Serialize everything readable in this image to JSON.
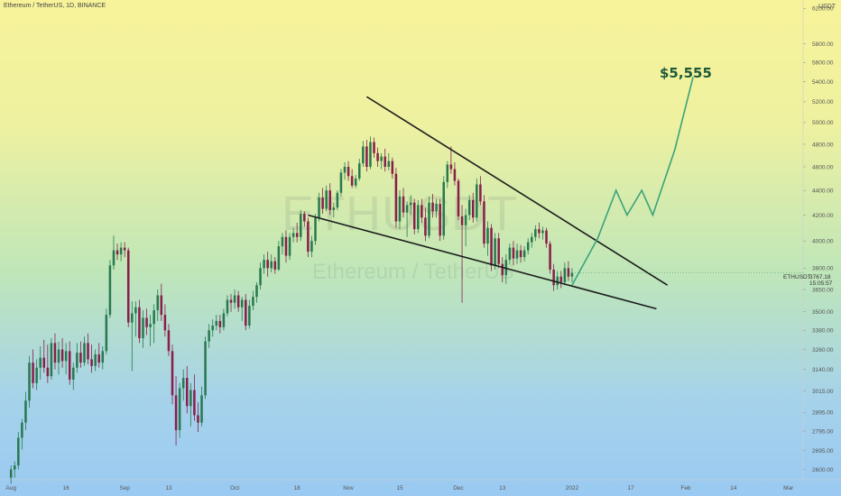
{
  "header": {
    "title": "Ethereum / TetherUS, 1D, BINANCE",
    "currency": "USDT"
  },
  "watermark": {
    "symbol": "ETHUSDT",
    "name": "Ethereum / TetherUS"
  },
  "annotation": {
    "target_label": "$5,555"
  },
  "price_scale": {
    "symbol": "ETHUSDT",
    "last_price": "3767.18",
    "countdown": "15:05:57"
  },
  "colors": {
    "up": "#28794f",
    "down": "#8a1e4a",
    "trendline": "#1b1b1b",
    "projection": "#3aa37a"
  },
  "chart_data": {
    "type": "candlestick",
    "yscale": "log",
    "ylim": [
      2550,
      6300
    ],
    "y_ticks": [
      "2600.00",
      "2695.00",
      "2795.00",
      "2895.00",
      "3015.00",
      "3140.00",
      "3260.00",
      "3380.00",
      "3500.00",
      "3650.00",
      "3800.00",
      "4000.00",
      "4200.00",
      "4400.00",
      "4600.00",
      "4800.00",
      "5000.00",
      "5200.00",
      "5400.00",
      "5600.00",
      "5800.00",
      "6200.00"
    ],
    "x_ticks": [
      {
        "label": "Aug",
        "day": 0
      },
      {
        "label": "16",
        "day": 15
      },
      {
        "label": "Sep",
        "day": 31
      },
      {
        "label": "13",
        "day": 43
      },
      {
        "label": "Oct",
        "day": 61
      },
      {
        "label": "18",
        "day": 78
      },
      {
        "label": "Nov",
        "day": 92
      },
      {
        "label": "15",
        "day": 106
      },
      {
        "label": "Dec",
        "day": 122
      },
      {
        "label": "13",
        "day": 134
      },
      {
        "label": "2022",
        "day": 153
      },
      {
        "label": "17",
        "day": 169
      },
      {
        "label": "Feb",
        "day": 184
      },
      {
        "label": "14",
        "day": 197
      },
      {
        "label": "Mar",
        "day": 212
      }
    ],
    "day_range": [
      -3,
      216
    ],
    "candles": [
      {
        "d": 0,
        "o": 2560,
        "h": 2620,
        "l": 2530,
        "c": 2600
      },
      {
        "d": 1,
        "o": 2600,
        "h": 2640,
        "l": 2560,
        "c": 2620
      },
      {
        "d": 2,
        "o": 2620,
        "h": 2790,
        "l": 2600,
        "c": 2760
      },
      {
        "d": 3,
        "o": 2760,
        "h": 2860,
        "l": 2700,
        "c": 2840
      },
      {
        "d": 4,
        "o": 2840,
        "h": 3010,
        "l": 2800,
        "c": 2960
      },
      {
        "d": 5,
        "o": 2960,
        "h": 3220,
        "l": 2920,
        "c": 3180
      },
      {
        "d": 6,
        "o": 3180,
        "h": 3260,
        "l": 3030,
        "c": 3060
      },
      {
        "d": 7,
        "o": 3060,
        "h": 3200,
        "l": 3020,
        "c": 3150
      },
      {
        "d": 8,
        "o": 3150,
        "h": 3280,
        "l": 3080,
        "c": 3210
      },
      {
        "d": 9,
        "o": 3210,
        "h": 3320,
        "l": 3120,
        "c": 3150
      },
      {
        "d": 10,
        "o": 3150,
        "h": 3290,
        "l": 3060,
        "c": 3100
      },
      {
        "d": 11,
        "o": 3100,
        "h": 3330,
        "l": 3080,
        "c": 3300
      },
      {
        "d": 12,
        "o": 3300,
        "h": 3360,
        "l": 3140,
        "c": 3180
      },
      {
        "d": 13,
        "o": 3180,
        "h": 3310,
        "l": 3110,
        "c": 3260
      },
      {
        "d": 14,
        "o": 3260,
        "h": 3330,
        "l": 3150,
        "c": 3190
      },
      {
        "d": 15,
        "o": 3190,
        "h": 3300,
        "l": 3110,
        "c": 3250
      },
      {
        "d": 16,
        "o": 3250,
        "h": 3310,
        "l": 3050,
        "c": 3080
      },
      {
        "d": 17,
        "o": 3080,
        "h": 3180,
        "l": 3020,
        "c": 3150
      },
      {
        "d": 18,
        "o": 3150,
        "h": 3300,
        "l": 3120,
        "c": 3240
      },
      {
        "d": 19,
        "o": 3240,
        "h": 3310,
        "l": 3150,
        "c": 3180
      },
      {
        "d": 20,
        "o": 3180,
        "h": 3340,
        "l": 3160,
        "c": 3300
      },
      {
        "d": 21,
        "o": 3300,
        "h": 3360,
        "l": 3170,
        "c": 3200
      },
      {
        "d": 22,
        "o": 3200,
        "h": 3290,
        "l": 3120,
        "c": 3160
      },
      {
        "d": 23,
        "o": 3160,
        "h": 3260,
        "l": 3130,
        "c": 3230
      },
      {
        "d": 24,
        "o": 3230,
        "h": 3300,
        "l": 3150,
        "c": 3180
      },
      {
        "d": 25,
        "o": 3180,
        "h": 3280,
        "l": 3140,
        "c": 3250
      },
      {
        "d": 26,
        "o": 3250,
        "h": 3520,
        "l": 3230,
        "c": 3480
      },
      {
        "d": 27,
        "o": 3480,
        "h": 3860,
        "l": 3460,
        "c": 3820
      },
      {
        "d": 28,
        "o": 3820,
        "h": 4040,
        "l": 3790,
        "c": 3930
      },
      {
        "d": 29,
        "o": 3930,
        "h": 3980,
        "l": 3860,
        "c": 3900
      },
      {
        "d": 30,
        "o": 3900,
        "h": 3990,
        "l": 3850,
        "c": 3950
      },
      {
        "d": 31,
        "o": 3950,
        "h": 3990,
        "l": 3880,
        "c": 3930
      },
      {
        "d": 32,
        "o": 3930,
        "h": 3950,
        "l": 3400,
        "c": 3430
      },
      {
        "d": 33,
        "o": 3430,
        "h": 3570,
        "l": 3130,
        "c": 3490
      },
      {
        "d": 34,
        "o": 3490,
        "h": 3570,
        "l": 3340,
        "c": 3530
      },
      {
        "d": 35,
        "o": 3530,
        "h": 3580,
        "l": 3300,
        "c": 3330
      },
      {
        "d": 36,
        "o": 3330,
        "h": 3510,
        "l": 3270,
        "c": 3460
      },
      {
        "d": 37,
        "o": 3460,
        "h": 3520,
        "l": 3350,
        "c": 3400
      },
      {
        "d": 38,
        "o": 3400,
        "h": 3480,
        "l": 3280,
        "c": 3420
      },
      {
        "d": 39,
        "o": 3420,
        "h": 3550,
        "l": 3300,
        "c": 3510
      },
      {
        "d": 40,
        "o": 3510,
        "h": 3650,
        "l": 3440,
        "c": 3610
      },
      {
        "d": 41,
        "o": 3610,
        "h": 3690,
        "l": 3440,
        "c": 3480
      },
      {
        "d": 42,
        "o": 3480,
        "h": 3550,
        "l": 3340,
        "c": 3380
      },
      {
        "d": 43,
        "o": 3380,
        "h": 3420,
        "l": 3220,
        "c": 3250
      },
      {
        "d": 44,
        "o": 3250,
        "h": 3290,
        "l": 2940,
        "c": 2990
      },
      {
        "d": 45,
        "o": 2990,
        "h": 3100,
        "l": 2720,
        "c": 2800
      },
      {
        "d": 46,
        "o": 2800,
        "h": 3060,
        "l": 2760,
        "c": 3030
      },
      {
        "d": 47,
        "o": 3030,
        "h": 3140,
        "l": 2960,
        "c": 3090
      },
      {
        "d": 48,
        "o": 3090,
        "h": 3160,
        "l": 2890,
        "c": 2930
      },
      {
        "d": 49,
        "o": 2930,
        "h": 3060,
        "l": 2820,
        "c": 3020
      },
      {
        "d": 50,
        "o": 3020,
        "h": 3110,
        "l": 2850,
        "c": 2880
      },
      {
        "d": 51,
        "o": 2880,
        "h": 2950,
        "l": 2790,
        "c": 2840
      },
      {
        "d": 52,
        "o": 2840,
        "h": 3040,
        "l": 2820,
        "c": 2990
      },
      {
        "d": 53,
        "o": 2990,
        "h": 3340,
        "l": 2970,
        "c": 3310
      },
      {
        "d": 54,
        "o": 3310,
        "h": 3420,
        "l": 3270,
        "c": 3380
      },
      {
        "d": 55,
        "o": 3380,
        "h": 3450,
        "l": 3340,
        "c": 3410
      },
      {
        "d": 56,
        "o": 3410,
        "h": 3480,
        "l": 3380,
        "c": 3440
      },
      {
        "d": 57,
        "o": 3440,
        "h": 3480,
        "l": 3360,
        "c": 3400
      },
      {
        "d": 58,
        "o": 3400,
        "h": 3520,
        "l": 3380,
        "c": 3490
      },
      {
        "d": 59,
        "o": 3490,
        "h": 3610,
        "l": 3470,
        "c": 3580
      },
      {
        "d": 60,
        "o": 3580,
        "h": 3620,
        "l": 3500,
        "c": 3560
      },
      {
        "d": 61,
        "o": 3560,
        "h": 3650,
        "l": 3520,
        "c": 3610
      },
      {
        "d": 62,
        "o": 3610,
        "h": 3640,
        "l": 3500,
        "c": 3530
      },
      {
        "d": 63,
        "o": 3530,
        "h": 3600,
        "l": 3440,
        "c": 3580
      },
      {
        "d": 64,
        "o": 3580,
        "h": 3620,
        "l": 3380,
        "c": 3410
      },
      {
        "d": 65,
        "o": 3410,
        "h": 3580,
        "l": 3390,
        "c": 3540
      },
      {
        "d": 66,
        "o": 3540,
        "h": 3640,
        "l": 3510,
        "c": 3600
      },
      {
        "d": 67,
        "o": 3600,
        "h": 3700,
        "l": 3560,
        "c": 3680
      },
      {
        "d": 68,
        "o": 3680,
        "h": 3840,
        "l": 3650,
        "c": 3800
      },
      {
        "d": 69,
        "o": 3800,
        "h": 3900,
        "l": 3760,
        "c": 3860
      },
      {
        "d": 70,
        "o": 3860,
        "h": 3920,
        "l": 3740,
        "c": 3800
      },
      {
        "d": 71,
        "o": 3800,
        "h": 3900,
        "l": 3770,
        "c": 3850
      },
      {
        "d": 72,
        "o": 3850,
        "h": 3880,
        "l": 3760,
        "c": 3790
      },
      {
        "d": 73,
        "o": 3790,
        "h": 4000,
        "l": 3780,
        "c": 3960
      },
      {
        "d": 74,
        "o": 3960,
        "h": 4060,
        "l": 3900,
        "c": 4030
      },
      {
        "d": 75,
        "o": 4030,
        "h": 4080,
        "l": 3840,
        "c": 3890
      },
      {
        "d": 76,
        "o": 3890,
        "h": 4060,
        "l": 3860,
        "c": 4030
      },
      {
        "d": 77,
        "o": 4030,
        "h": 4100,
        "l": 3990,
        "c": 4060
      },
      {
        "d": 78,
        "o": 4060,
        "h": 4140,
        "l": 3990,
        "c": 4030
      },
      {
        "d": 79,
        "o": 4030,
        "h": 4240,
        "l": 4000,
        "c": 4210
      },
      {
        "d": 80,
        "o": 4210,
        "h": 4230,
        "l": 4110,
        "c": 4150
      },
      {
        "d": 81,
        "o": 4150,
        "h": 4180,
        "l": 3880,
        "c": 3920
      },
      {
        "d": 82,
        "o": 3920,
        "h": 4040,
        "l": 3880,
        "c": 4000
      },
      {
        "d": 83,
        "o": 4000,
        "h": 4210,
        "l": 3970,
        "c": 4180
      },
      {
        "d": 84,
        "o": 4180,
        "h": 4380,
        "l": 4150,
        "c": 4340
      },
      {
        "d": 85,
        "o": 4340,
        "h": 4420,
        "l": 4210,
        "c": 4250
      },
      {
        "d": 86,
        "o": 4250,
        "h": 4440,
        "l": 4230,
        "c": 4400
      },
      {
        "d": 87,
        "o": 4400,
        "h": 4460,
        "l": 4200,
        "c": 4240
      },
      {
        "d": 88,
        "o": 4240,
        "h": 4300,
        "l": 4180,
        "c": 4260
      },
      {
        "d": 89,
        "o": 4260,
        "h": 4400,
        "l": 4240,
        "c": 4380
      },
      {
        "d": 90,
        "o": 4380,
        "h": 4580,
        "l": 4350,
        "c": 4550
      },
      {
        "d": 91,
        "o": 4550,
        "h": 4640,
        "l": 4490,
        "c": 4600
      },
      {
        "d": 92,
        "o": 4600,
        "h": 4650,
        "l": 4480,
        "c": 4520
      },
      {
        "d": 93,
        "o": 4520,
        "h": 4580,
        "l": 4420,
        "c": 4440
      },
      {
        "d": 94,
        "o": 4440,
        "h": 4530,
        "l": 4420,
        "c": 4500
      },
      {
        "d": 95,
        "o": 4500,
        "h": 4670,
        "l": 4480,
        "c": 4630
      },
      {
        "d": 96,
        "o": 4630,
        "h": 4830,
        "l": 4600,
        "c": 4780
      },
      {
        "d": 97,
        "o": 4780,
        "h": 4840,
        "l": 4560,
        "c": 4600
      },
      {
        "d": 98,
        "o": 4600,
        "h": 4870,
        "l": 4580,
        "c": 4820
      },
      {
        "d": 99,
        "o": 4820,
        "h": 4860,
        "l": 4680,
        "c": 4720
      },
      {
        "d": 100,
        "o": 4720,
        "h": 4770,
        "l": 4600,
        "c": 4650
      },
      {
        "d": 101,
        "o": 4650,
        "h": 4720,
        "l": 4580,
        "c": 4690
      },
      {
        "d": 102,
        "o": 4690,
        "h": 4760,
        "l": 4560,
        "c": 4600
      },
      {
        "d": 103,
        "o": 4600,
        "h": 4720,
        "l": 4570,
        "c": 4650
      },
      {
        "d": 104,
        "o": 4650,
        "h": 4680,
        "l": 4500,
        "c": 4540
      },
      {
        "d": 105,
        "o": 4540,
        "h": 4590,
        "l": 4100,
        "c": 4150
      },
      {
        "d": 106,
        "o": 4150,
        "h": 4400,
        "l": 4090,
        "c": 4350
      },
      {
        "d": 107,
        "o": 4350,
        "h": 4420,
        "l": 4180,
        "c": 4220
      },
      {
        "d": 108,
        "o": 4220,
        "h": 4310,
        "l": 4030,
        "c": 4280
      },
      {
        "d": 109,
        "o": 4280,
        "h": 4360,
        "l": 4200,
        "c": 4300
      },
      {
        "d": 110,
        "o": 4300,
        "h": 4330,
        "l": 4050,
        "c": 4090
      },
      {
        "d": 111,
        "o": 4090,
        "h": 4320,
        "l": 4060,
        "c": 4280
      },
      {
        "d": 112,
        "o": 4280,
        "h": 4330,
        "l": 4140,
        "c": 4180
      },
      {
        "d": 113,
        "o": 4180,
        "h": 4260,
        "l": 4000,
        "c": 4040
      },
      {
        "d": 114,
        "o": 4040,
        "h": 4350,
        "l": 4020,
        "c": 4300
      },
      {
        "d": 115,
        "o": 4300,
        "h": 4370,
        "l": 4180,
        "c": 4230
      },
      {
        "d": 116,
        "o": 4230,
        "h": 4330,
        "l": 4180,
        "c": 4290
      },
      {
        "d": 117,
        "o": 4290,
        "h": 4330,
        "l": 4000,
        "c": 4040
      },
      {
        "d": 118,
        "o": 4040,
        "h": 4520,
        "l": 4010,
        "c": 4470
      },
      {
        "d": 119,
        "o": 4470,
        "h": 4650,
        "l": 4420,
        "c": 4620
      },
      {
        "d": 120,
        "o": 4620,
        "h": 4780,
        "l": 4540,
        "c": 4580
      },
      {
        "d": 121,
        "o": 4580,
        "h": 4640,
        "l": 4440,
        "c": 4480
      },
      {
        "d": 122,
        "o": 4480,
        "h": 4500,
        "l": 4160,
        "c": 4190
      },
      {
        "d": 123,
        "o": 4190,
        "h": 4280,
        "l": 3560,
        "c": 4120
      },
      {
        "d": 124,
        "o": 4120,
        "h": 4250,
        "l": 3960,
        "c": 4200
      },
      {
        "d": 125,
        "o": 4200,
        "h": 4360,
        "l": 4160,
        "c": 4320
      },
      {
        "d": 126,
        "o": 4320,
        "h": 4380,
        "l": 4140,
        "c": 4180
      },
      {
        "d": 127,
        "o": 4180,
        "h": 4500,
        "l": 4150,
        "c": 4450
      },
      {
        "d": 128,
        "o": 4450,
        "h": 4520,
        "l": 4280,
        "c": 4310
      },
      {
        "d": 129,
        "o": 4310,
        "h": 4360,
        "l": 3950,
        "c": 3980
      },
      {
        "d": 130,
        "o": 3980,
        "h": 4150,
        "l": 3890,
        "c": 4100
      },
      {
        "d": 131,
        "o": 4100,
        "h": 4130,
        "l": 3780,
        "c": 3820
      },
      {
        "d": 132,
        "o": 3820,
        "h": 4060,
        "l": 3790,
        "c": 4020
      },
      {
        "d": 133,
        "o": 4020,
        "h": 4060,
        "l": 3800,
        "c": 3830
      },
      {
        "d": 134,
        "o": 3830,
        "h": 3880,
        "l": 3700,
        "c": 3750
      },
      {
        "d": 135,
        "o": 3750,
        "h": 3900,
        "l": 3690,
        "c": 3860
      },
      {
        "d": 136,
        "o": 3860,
        "h": 3980,
        "l": 3830,
        "c": 3950
      },
      {
        "d": 137,
        "o": 3950,
        "h": 4000,
        "l": 3820,
        "c": 3870
      },
      {
        "d": 138,
        "o": 3870,
        "h": 3980,
        "l": 3830,
        "c": 3930
      },
      {
        "d": 139,
        "o": 3930,
        "h": 3970,
        "l": 3840,
        "c": 3880
      },
      {
        "d": 140,
        "o": 3880,
        "h": 3960,
        "l": 3850,
        "c": 3930
      },
      {
        "d": 141,
        "o": 3930,
        "h": 4020,
        "l": 3900,
        "c": 3990
      },
      {
        "d": 142,
        "o": 3990,
        "h": 4060,
        "l": 3950,
        "c": 4030
      },
      {
        "d": 143,
        "o": 4030,
        "h": 4120,
        "l": 4000,
        "c": 4090
      },
      {
        "d": 144,
        "o": 4090,
        "h": 4140,
        "l": 4020,
        "c": 4060
      },
      {
        "d": 145,
        "o": 4060,
        "h": 4110,
        "l": 4010,
        "c": 4080
      },
      {
        "d": 146,
        "o": 4080,
        "h": 4100,
        "l": 3950,
        "c": 3980
      },
      {
        "d": 147,
        "o": 3980,
        "h": 4000,
        "l": 3760,
        "c": 3790
      },
      {
        "d": 148,
        "o": 3790,
        "h": 3830,
        "l": 3640,
        "c": 3680
      },
      {
        "d": 149,
        "o": 3680,
        "h": 3780,
        "l": 3650,
        "c": 3740
      },
      {
        "d": 150,
        "o": 3740,
        "h": 3780,
        "l": 3660,
        "c": 3700
      },
      {
        "d": 151,
        "o": 3700,
        "h": 3840,
        "l": 3680,
        "c": 3800
      },
      {
        "d": 152,
        "o": 3800,
        "h": 3850,
        "l": 3710,
        "c": 3740
      },
      {
        "d": 153,
        "o": 3740,
        "h": 3800,
        "l": 3700,
        "c": 3767
      }
    ],
    "trendlines": [
      {
        "name": "upper-wedge",
        "points": [
          {
            "d": 97,
            "price": 5250
          },
          {
            "d": 179,
            "price": 3680
          }
        ]
      },
      {
        "name": "lower-wedge",
        "points": [
          {
            "d": 81,
            "price": 4200
          },
          {
            "d": 176,
            "price": 3520
          }
        ]
      }
    ],
    "projection": [
      {
        "d": 153,
        "price": 3680
      },
      {
        "d": 160,
        "price": 4020
      },
      {
        "d": 165,
        "price": 4400
      },
      {
        "d": 168,
        "price": 4200
      },
      {
        "d": 172,
        "price": 4400
      },
      {
        "d": 175,
        "price": 4200
      },
      {
        "d": 181,
        "price": 4750
      },
      {
        "d": 186,
        "price": 5450
      }
    ]
  }
}
